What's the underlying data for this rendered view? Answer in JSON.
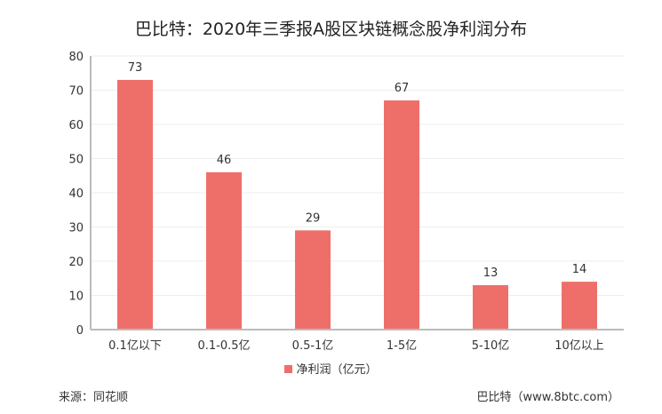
{
  "chart_data": {
    "type": "bar",
    "title": "巴比特：2020年三季报A股区块链概念股净利润分布",
    "categories": [
      "0.1亿以下",
      "0.1-0.5亿",
      "0.5-1亿",
      "1-5亿",
      "5-10亿",
      "10亿以上"
    ],
    "series": [
      {
        "name": "净利润（亿元）",
        "values": [
          73,
          46,
          29,
          67,
          13,
          14
        ],
        "color": "#ee6f6a"
      }
    ],
    "xlabel": "",
    "ylabel": "",
    "ylim": [
      0,
      80
    ],
    "yticks": [
      0,
      10,
      20,
      30,
      40,
      50,
      60,
      70,
      80
    ],
    "grid": true,
    "legend": "bottom"
  },
  "footer": {
    "source": "来源：同花顺",
    "credit": "巴比特（www.8btc.com）"
  }
}
